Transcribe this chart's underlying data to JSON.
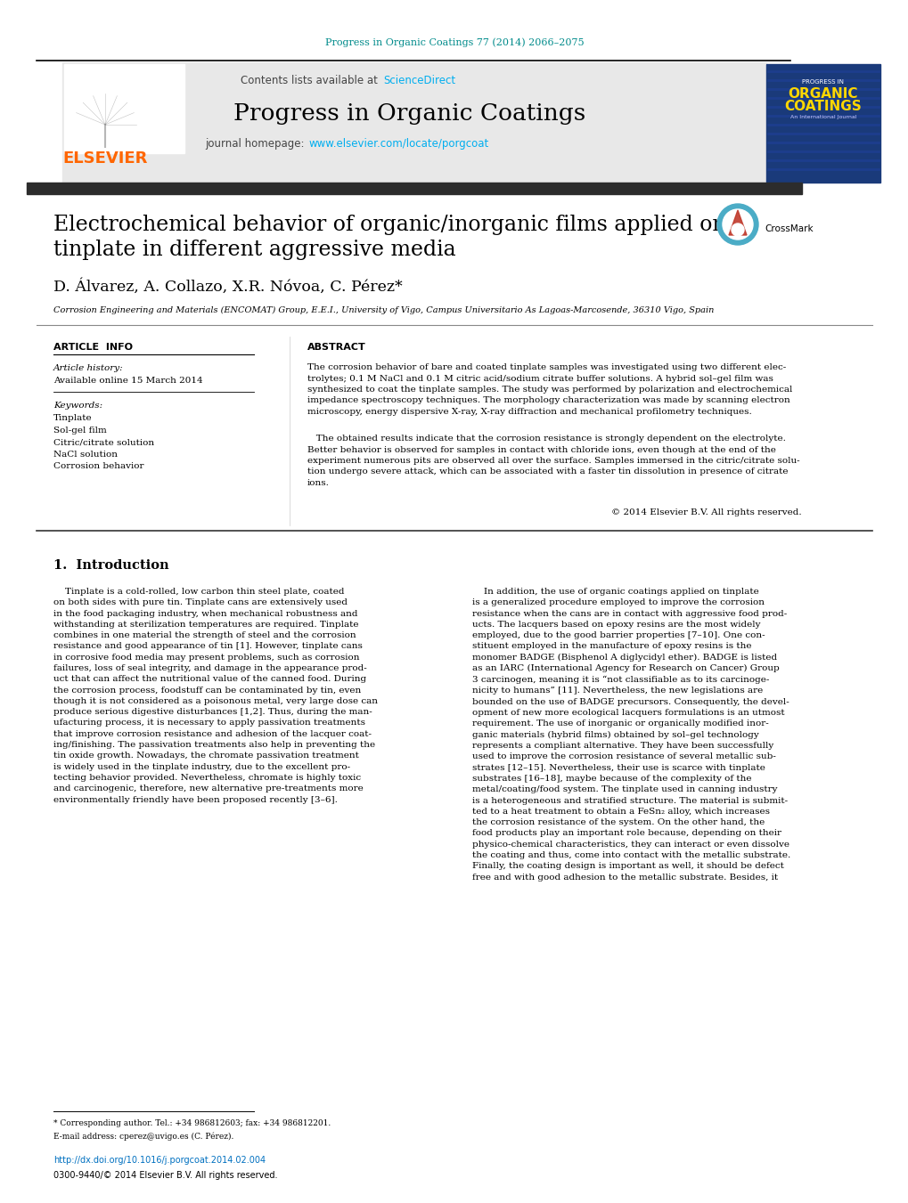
{
  "journal_ref": "Progress in Organic Coatings 77 (2014) 2066–2075",
  "journal_ref_color": "#008B8B",
  "contents_text": "Contents lists available at ",
  "sciencedirect_text": "ScienceDirect",
  "sciencedirect_color": "#00AEEF",
  "journal_title": "Progress in Organic Coatings",
  "journal_homepage_prefix": "journal homepage: ",
  "journal_homepage_link": "www.elsevier.com/locate/porgcoat",
  "journal_homepage_color": "#00AEEF",
  "elsevier_color": "#FF6600",
  "paper_title_line1": "Electrochemical behavior of organic/inorganic films applied on",
  "paper_title_line2": "tinplate in different aggressive media",
  "authors": "D. Álvarez, A. Collazo, X.R. Nóvoa, C. Pérez",
  "affiliation": "Corrosion Engineering and Materials (ENCOMAT) Group, E.E.I., University of Vigo, Campus Universitario As Lagoas-Marcosende, 36310 Vigo, Spain",
  "article_info_label": "ARTICLE  INFO",
  "abstract_label": "ABSTRACT",
  "article_history_label": "Article history:",
  "available_online": "Available online 15 March 2014",
  "keywords_label": "Keywords:",
  "keywords": [
    "Tinplate",
    "Sol-gel film",
    "Citric/citrate solution",
    "NaCl solution",
    "Corrosion behavior"
  ],
  "abstract_para1": "The corrosion behavior of bare and coated tinplate samples was investigated using two different elec-\ntrolytes; 0.1 M NaCl and 0.1 M citric acid/sodium citrate buffer solutions. A hybrid sol–gel film was\nsynthesized to coat the tinplate samples. The study was performed by polarization and electrochemical\nimpedance spectroscopy techniques. The morphology characterization was made by scanning electron\nmicroscopy, energy dispersive X-ray, X-ray diffraction and mechanical profilometry techniques.",
  "abstract_para2": "   The obtained results indicate that the corrosion resistance is strongly dependent on the electrolyte.\nBetter behavior is observed for samples in contact with chloride ions, even though at the end of the\nexperiment numerous pits are observed all over the surface. Samples immersed in the citric/citrate solu-\ntion undergo severe attack, which can be associated with a faster tin dissolution in presence of citrate\nions.",
  "copyright": "© 2014 Elsevier B.V. All rights reserved.",
  "section1_title": "1.  Introduction",
  "left_intro": "    Tinplate is a cold-rolled, low carbon thin steel plate, coated\non both sides with pure tin. Tinplate cans are extensively used\nin the food packaging industry, when mechanical robustness and\nwithstanding at sterilization temperatures are required. Tinplate\ncombines in one material the strength of steel and the corrosion\nresistance and good appearance of tin [1]. However, tinplate cans\nin corrosive food media may present problems, such as corrosion\nfailures, loss of seal integrity, and damage in the appearance prod-\nuct that can affect the nutritional value of the canned food. During\nthe corrosion process, foodstuff can be contaminated by tin, even\nthough it is not considered as a poisonous metal, very large dose can\nproduce serious digestive disturbances [1,2]. Thus, during the man-\nufacturing process, it is necessary to apply passivation treatments\nthat improve corrosion resistance and adhesion of the lacquer coat-\ning/finishing. The passivation treatments also help in preventing the\ntin oxide growth. Nowadays, the chromate passivation treatment\nis widely used in the tinplate industry, due to the excellent pro-\ntecting behavior provided. Nevertheless, chromate is highly toxic\nand carcinogenic, therefore, new alternative pre-treatments more\nenvironmentally friendly have been proposed recently [3–6].",
  "right_intro": "    In addition, the use of organic coatings applied on tinplate\nis a generalized procedure employed to improve the corrosion\nresistance when the cans are in contact with aggressive food prod-\nucts. The lacquers based on epoxy resins are the most widely\nemployed, due to the good barrier properties [7–10]. One con-\nstituent employed in the manufacture of epoxy resins is the\nmonomer BADGE (Bisphenol A diglycidyl ether). BADGE is listed\nas an IARC (International Agency for Research on Cancer) Group\n3 carcinogen, meaning it is “not classifiable as to its carcinoge-\nnicity to humans” [11]. Nevertheless, the new legislations are\nbounded on the use of BADGE precursors. Consequently, the devel-\nopment of new more ecological lacquers formulations is an utmost\nrequirement. The use of inorganic or organically modified inor-\nganic materials (hybrid films) obtained by sol–gel technology\nrepresents a compliant alternative. They have been successfully\nused to improve the corrosion resistance of several metallic sub-\nstrates [12–15]. Nevertheless, their use is scarce with tinplate\nsubstrates [16–18], maybe because of the complexity of the\nmetal/coating/food system. The tinplate used in canning industry\nis a heterogeneous and stratified structure. The material is submit-\nted to a heat treatment to obtain a FeSn₂ alloy, which increases\nthe corrosion resistance of the system. On the other hand, the\nfood products play an important role because, depending on their\nphysico-chemical characteristics, they can interact or even dissolve\nthe coating and thus, come into contact with the metallic substrate.\nFinally, the coating design is important as well, it should be defect\nfree and with good adhesion to the metallic substrate. Besides, it",
  "footnote_line1": "* Corresponding author. Tel.: +34 986812603; fax: +34 986812201.",
  "footnote_line2": "E-mail address: cperez@uvigo.es (C. Pérez).",
  "doi_text": "http://dx.doi.org/10.1016/j.porgcoat.2014.02.004",
  "doi_color": "#0070C0",
  "copyright_footer": "0300-9440/© 2014 Elsevier B.V. All rights reserved.",
  "bg_header_color": "#E8E8E8",
  "dark_bar_color": "#2C2C2C",
  "body_font_size": 7.5,
  "title_font_size": 17
}
